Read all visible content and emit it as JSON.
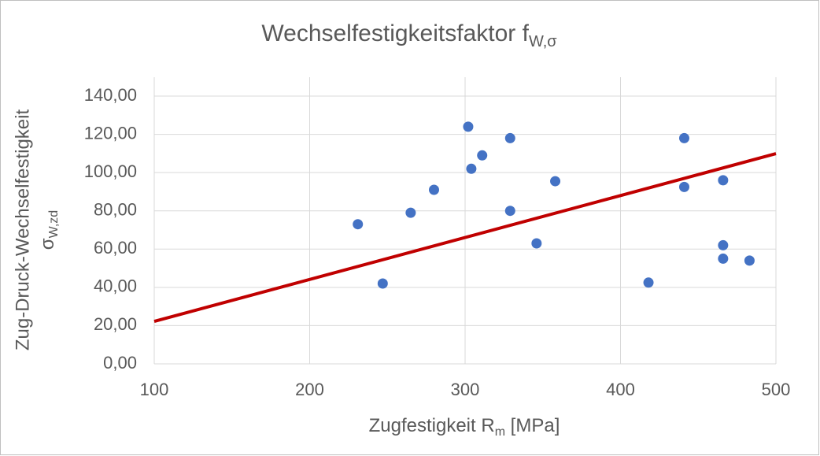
{
  "chart_data": {
    "type": "scatter",
    "title": "Wechselfestigkeitsfaktor f",
    "title_subscript": "W,σ",
    "x_label": "Zugfestigkeit R",
    "x_label_subscript": "m",
    "x_label_suffix": " [MPa]",
    "y_label": "Zug-Druck-Wechselfestigkeit",
    "y_label_symbol": "σ",
    "y_label_subscript": "W,zd",
    "xlim": [
      100,
      500
    ],
    "xticks": [
      100,
      200,
      300,
      400,
      500
    ],
    "ylim": [
      0,
      140
    ],
    "yticks": [
      {
        "value": 0,
        "label": "0,00"
      },
      {
        "value": 20,
        "label": "20,00"
      },
      {
        "value": 40,
        "label": "40,00"
      },
      {
        "value": 60,
        "label": "60,00"
      },
      {
        "value": 80,
        "label": "80,00"
      },
      {
        "value": 100,
        "label": "100,00"
      },
      {
        "value": 120,
        "label": "120,00"
      },
      {
        "value": 140,
        "label": "140,00"
      }
    ],
    "grid": true,
    "series": [
      {
        "color": "#4472c4",
        "x": [
          231,
          247,
          265,
          280,
          302,
          304,
          311,
          329,
          329,
          346,
          358,
          418,
          441,
          441,
          466,
          466,
          466,
          483
        ],
        "values": [
          73,
          42,
          79,
          91,
          124,
          102,
          109,
          118,
          80,
          63,
          95.5,
          42.5,
          118,
          92.5,
          96,
          62,
          55,
          54
        ]
      }
    ],
    "trendline": {
      "color": "#c00000",
      "x": [
        100,
        500
      ],
      "values": [
        22.2,
        109.9
      ]
    }
  }
}
